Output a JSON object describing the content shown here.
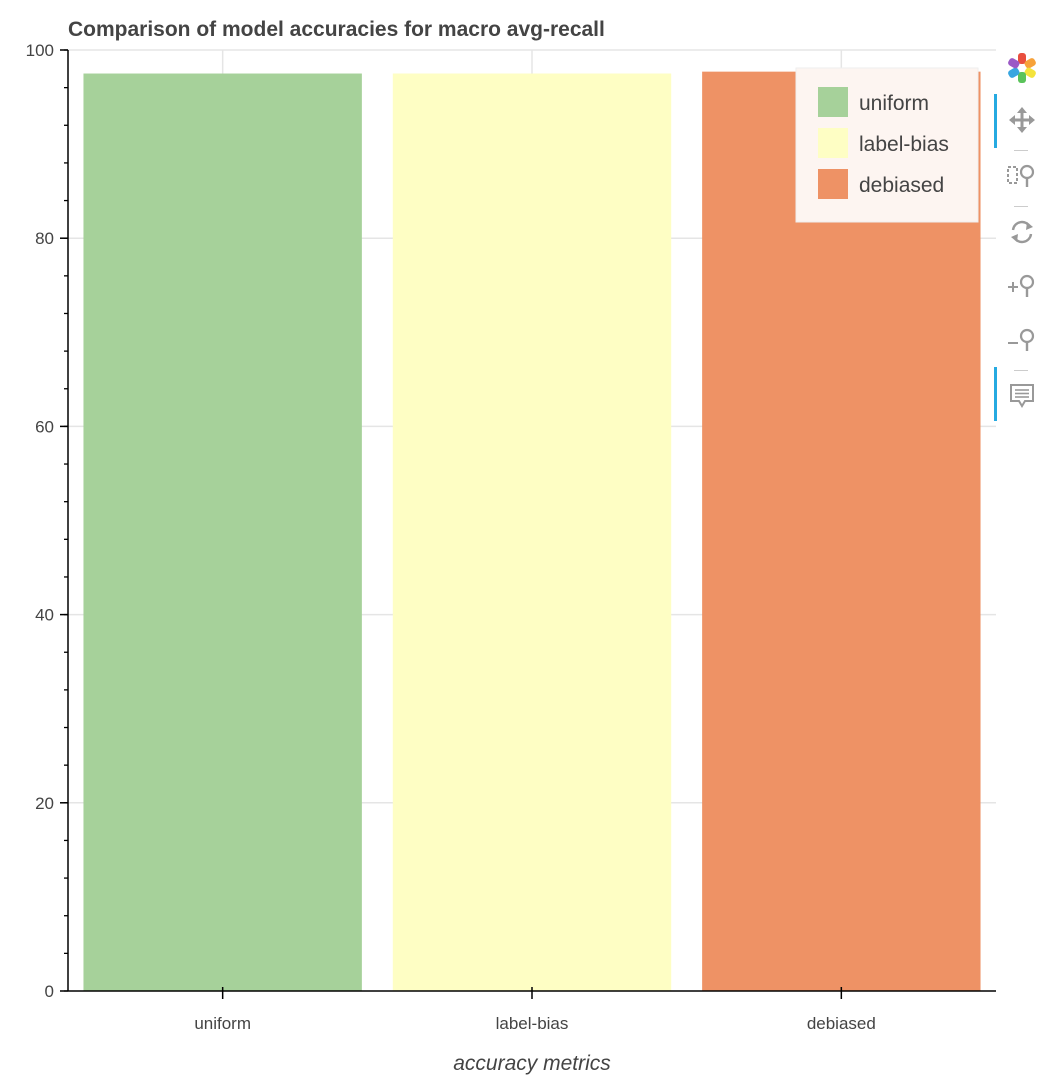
{
  "chart_data": {
    "type": "bar",
    "title": "Comparison of model accuracies for macro avg-recall",
    "xlabel": "accuracy metrics",
    "ylabel": "",
    "categories": [
      "uniform",
      "label-bias",
      "debiased"
    ],
    "values": [
      97.5,
      97.5,
      97.7
    ],
    "colors": [
      "#a6d19a",
      "#fefec4",
      "#ee9265"
    ],
    "ylim": [
      0,
      100
    ],
    "yticks": [
      0,
      20,
      40,
      60,
      80,
      100
    ],
    "ytick_labels": [
      "0",
      "20",
      "40",
      "60",
      "80",
      "100"
    ],
    "grid": true,
    "legend": {
      "placement": "top-right",
      "entries": [
        {
          "label": "uniform",
          "color": "#a6d19a"
        },
        {
          "label": "label-bias",
          "color": "#fefec4"
        },
        {
          "label": "debiased",
          "color": "#ee9265"
        }
      ]
    }
  },
  "toolbar": {
    "tools": [
      {
        "name": "bokeh-logo-icon",
        "active": false
      },
      {
        "name": "pan-icon",
        "active": true
      },
      {
        "name": "box-zoom-icon",
        "active": false
      },
      {
        "name": "reset-icon",
        "active": false
      },
      {
        "name": "zoom-in-icon",
        "active": false
      },
      {
        "name": "zoom-out-icon",
        "active": false
      },
      {
        "name": "hover-icon",
        "active": true
      }
    ]
  }
}
